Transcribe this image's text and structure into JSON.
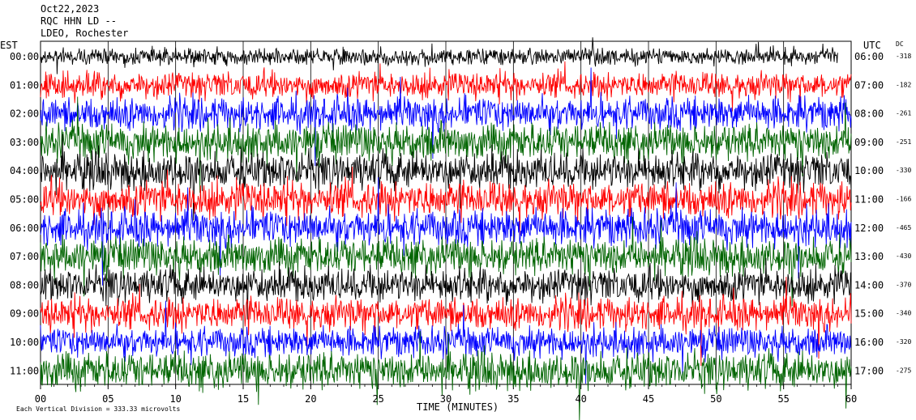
{
  "chart_data": {
    "type": "line",
    "header": {
      "date": "Oct22,2023",
      "station": "RQC HHN LD --",
      "network": "LDEO, Rochester"
    },
    "left_axis_label": "EST",
    "right_axis_label": "UTC",
    "dc_label": "DC",
    "x_axis_label": "TIME (MINUTES)",
    "footer_note": "Each Vertical Division = 333.33 microvolts",
    "x_ticks": [
      "00",
      "05",
      "10",
      "15",
      "20",
      "25",
      "30",
      "35",
      "40",
      "45",
      "50",
      "55",
      "60"
    ],
    "xlim": [
      0,
      60
    ],
    "rows": [
      {
        "est": "00:00",
        "utc": "06:00",
        "dc": "-318",
        "color": "#000000",
        "amp": 10
      },
      {
        "est": "01:00",
        "utc": "07:00",
        "dc": "-182",
        "color": "#ff0000",
        "amp": 16
      },
      {
        "est": "02:00",
        "utc": "08:00",
        "dc": "-261",
        "color": "#0000ff",
        "amp": 20
      },
      {
        "est": "03:00",
        "utc": "09:00",
        "dc": "-251",
        "color": "#006400",
        "amp": 22
      },
      {
        "est": "04:00",
        "utc": "10:00",
        "dc": "-330",
        "color": "#000000",
        "amp": 22
      },
      {
        "est": "05:00",
        "utc": "11:00",
        "dc": "-166",
        "color": "#ff0000",
        "amp": 22
      },
      {
        "est": "06:00",
        "utc": "12:00",
        "dc": "-465",
        "color": "#0000ff",
        "amp": 22
      },
      {
        "est": "07:00",
        "utc": "13:00",
        "dc": "-430",
        "color": "#006400",
        "amp": 22
      },
      {
        "est": "08:00",
        "utc": "14:00",
        "dc": "-370",
        "color": "#000000",
        "amp": 20
      },
      {
        "est": "09:00",
        "utc": "15:00",
        "dc": "-340",
        "color": "#ff0000",
        "amp": 20
      },
      {
        "est": "10:00",
        "utc": "16:00",
        "dc": "-320",
        "color": "#0000ff",
        "amp": 18
      },
      {
        "est": "11:00",
        "utc": "17:00",
        "dc": "-275",
        "color": "#006400",
        "amp": 22
      }
    ]
  }
}
